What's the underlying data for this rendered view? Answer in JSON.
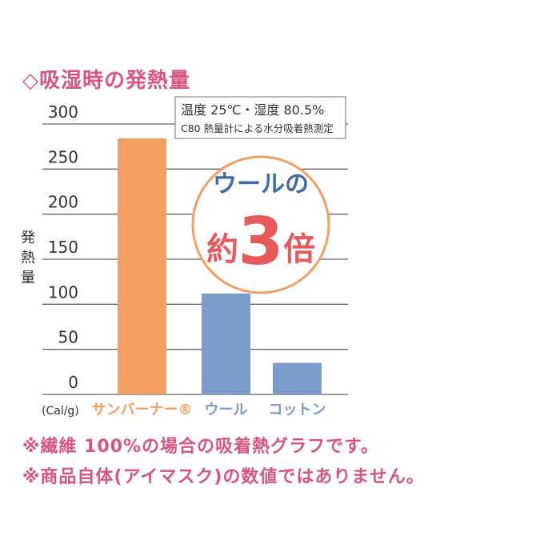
{
  "title": "◇吸湿時の発熱量",
  "condition_box": {
    "line1": "温度 25℃・湿度 80.5%",
    "line2": "C80 熱量計による水分吸着熱測定"
  },
  "badge": {
    "line1": "ウールの",
    "prefix": "約",
    "number": "3",
    "suffix": "倍"
  },
  "notes": [
    "※繊維 100%の場合の吸着熱グラフです。",
    "※商品自体(アイマスク)の数値ではありません。"
  ],
  "colors": {
    "orange": "#f2a062",
    "blue": "#7a9cc8",
    "pink": "#d9557f",
    "badge_red": "#e85a5a",
    "badge_blue": "#3f6ea3"
  },
  "chart_data": {
    "type": "bar",
    "title": "吸湿時の発熱量",
    "ylabel": "発熱量",
    "unit": "(Cal/g)",
    "categories": [
      "サンバーナー®",
      "ウール",
      "コットン"
    ],
    "values": [
      284,
      112,
      35
    ],
    "bar_colors": [
      "#f2a062",
      "#7a9cc8",
      "#7a9cc8"
    ],
    "label_colors": [
      "#f2a062",
      "#7a9cc8",
      "#7a9cc8"
    ],
    "ylim": [
      0,
      300
    ],
    "yticks": [
      0,
      50,
      100,
      150,
      200,
      250,
      300
    ],
    "grid": true
  }
}
